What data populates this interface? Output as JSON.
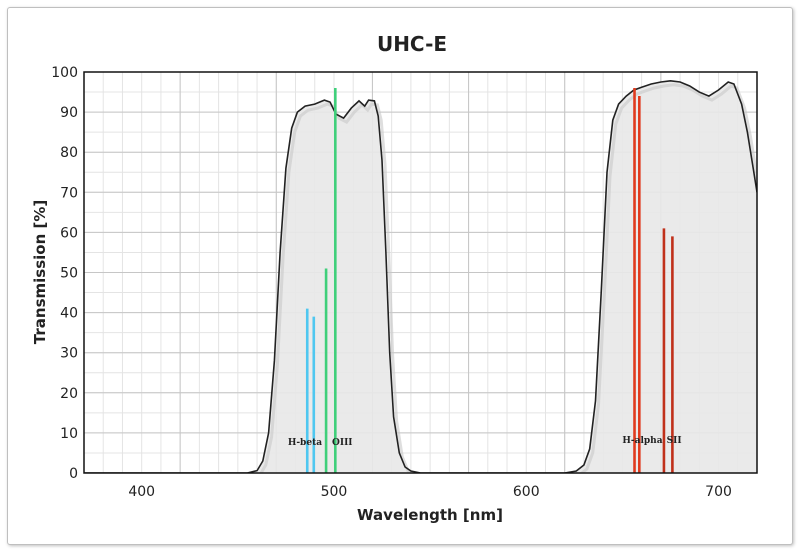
{
  "chart_data": {
    "type": "line",
    "title": "UHC-E",
    "xlabel": "Wavelength [nm]",
    "ylabel": "Transmission [%]",
    "xlim": [
      370,
      720
    ],
    "ylim": [
      0,
      100
    ],
    "x_ticks": [
      400,
      500,
      600,
      700
    ],
    "y_ticks": [
      0,
      10,
      20,
      30,
      40,
      50,
      60,
      70,
      80,
      90,
      100
    ],
    "x_minor_step": 10,
    "y_minor_step": 5,
    "grid": true,
    "colors": {
      "curve": "#222222",
      "fill": "#e8e8e8",
      "shadow_curve": "#c8c8c8",
      "hbeta": "#4fc7f0",
      "oiii": "#3fcf7a",
      "halpha": "#e03a1e",
      "sii": "#c0301a"
    },
    "curve": [
      [
        370,
        0
      ],
      [
        455,
        0
      ],
      [
        460,
        0.6
      ],
      [
        463,
        3
      ],
      [
        466,
        10
      ],
      [
        469,
        28
      ],
      [
        472,
        55
      ],
      [
        475,
        76
      ],
      [
        478,
        86
      ],
      [
        481,
        90
      ],
      [
        485,
        91.5
      ],
      [
        490,
        92
      ],
      [
        495,
        93
      ],
      [
        498,
        92.5
      ],
      [
        501,
        89.5
      ],
      [
        505,
        88.5
      ],
      [
        509,
        91
      ],
      [
        513,
        92.8
      ],
      [
        516,
        91.5
      ],
      [
        518,
        93
      ],
      [
        521,
        92.8
      ],
      [
        523,
        89
      ],
      [
        525,
        78
      ],
      [
        527,
        55
      ],
      [
        529,
        30
      ],
      [
        531,
        14
      ],
      [
        534,
        5
      ],
      [
        537,
        1.5
      ],
      [
        540,
        0.5
      ],
      [
        545,
        0
      ],
      [
        620,
        0
      ],
      [
        626,
        0.5
      ],
      [
        630,
        2
      ],
      [
        633,
        6
      ],
      [
        636,
        18
      ],
      [
        639,
        45
      ],
      [
        642,
        75
      ],
      [
        645,
        88
      ],
      [
        648,
        92
      ],
      [
        652,
        94
      ],
      [
        656,
        95.5
      ],
      [
        660,
        96.2
      ],
      [
        665,
        97
      ],
      [
        670,
        97.5
      ],
      [
        675,
        97.8
      ],
      [
        680,
        97.5
      ],
      [
        685,
        96.5
      ],
      [
        690,
        95
      ],
      [
        695,
        94
      ],
      [
        700,
        95.5
      ],
      [
        705,
        97.5
      ],
      [
        708,
        97
      ],
      [
        712,
        92
      ],
      [
        715,
        85
      ],
      [
        718,
        76
      ],
      [
        720,
        70
      ]
    ],
    "emission_lines": [
      {
        "x": 486.1,
        "y": 41,
        "color": "hbeta"
      },
      {
        "x": 489.5,
        "y": 39,
        "color": "hbeta"
      },
      {
        "x": 495.9,
        "y": 51,
        "color": "oiii"
      },
      {
        "x": 500.7,
        "y": 96,
        "color": "oiii"
      },
      {
        "x": 656.3,
        "y": 96,
        "color": "halpha"
      },
      {
        "x": 658.8,
        "y": 94,
        "color": "halpha"
      },
      {
        "x": 671.6,
        "y": 61,
        "color": "sii"
      },
      {
        "x": 676.0,
        "y": 59,
        "color": "sii"
      }
    ],
    "annotations": [
      {
        "text": "H-beta",
        "x": 476,
        "y": 7
      },
      {
        "text": "OIII",
        "x": 499,
        "y": 7
      },
      {
        "text": "H-alpha",
        "x": 650,
        "y": 7.5
      },
      {
        "text": "SII",
        "x": 673,
        "y": 7.5
      }
    ]
  }
}
